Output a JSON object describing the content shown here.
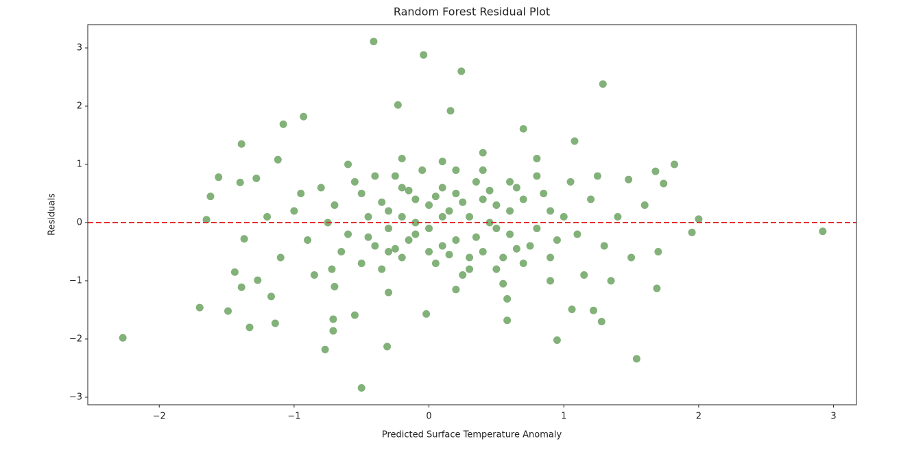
{
  "chart_data": {
    "type": "scatter",
    "title": "Random Forest Residual Plot",
    "xlabel": "Predicted Surface Temperature Anomaly",
    "ylabel": "Residuals",
    "xlim": [
      -2.53,
      3.17
    ],
    "ylim": [
      -3.13,
      3.4
    ],
    "xticks": [
      {
        "value": -2,
        "label": "−2"
      },
      {
        "value": -1,
        "label": "−1"
      },
      0,
      1,
      2,
      3
    ],
    "yticks": [
      {
        "value": -3,
        "label": "−3"
      },
      {
        "value": -2,
        "label": "−2"
      },
      {
        "value": -1,
        "label": "−1"
      },
      0,
      1,
      2,
      3
    ],
    "grid": false,
    "hline": {
      "y": 0,
      "color": "#e03030",
      "style": "dashed"
    },
    "series": [
      {
        "color": "#2e7d1f",
        "opacity": 0.6,
        "x": [
          -0.41,
          -0.04,
          0.24,
          1.29,
          -0.23,
          -0.93,
          -1.08,
          0.16,
          0.7,
          1.08,
          -1.39,
          -1.56,
          -1.62,
          1.82,
          2.0,
          2.92,
          -2.27,
          -1.7,
          -0.5,
          -0.31,
          -0.77,
          0.95,
          1.54,
          -1.33,
          -1.14,
          -1.49,
          1.69,
          1.28,
          -1.65,
          -1.28,
          -1.4,
          -1.12,
          -1.37,
          -1.44,
          -1.39,
          -1.27,
          -1.17,
          1.95,
          1.74,
          1.68,
          1.48,
          1.22,
          1.06,
          0.58,
          0.58,
          -0.55,
          -0.71,
          -0.71,
          -0.02,
          -0.7,
          -0.6,
          -0.5,
          -0.4,
          -0.3,
          -0.2,
          -0.1,
          0,
          0.1,
          0.2,
          0.3,
          0.4,
          0.5,
          0.6,
          0.7,
          0.8,
          0.9,
          -0.65,
          -0.55,
          -0.45,
          -0.35,
          -0.25,
          -0.15,
          -0.05,
          0.05,
          0.15,
          0.25,
          0.35,
          0.45,
          0.55,
          0.65,
          0.75,
          0.85,
          0.95,
          -0.75,
          -0.8,
          -0.72,
          -0.3,
          -0.2,
          -0.1,
          0.0,
          0.1,
          0.2,
          0.3,
          0.4,
          0.5,
          0.6,
          0.0,
          -0.1,
          0.1,
          -0.5,
          -0.4,
          -0.3,
          -0.2,
          0.2,
          0.3,
          0.4,
          0.5,
          0.6,
          0.7,
          0.8,
          0.9,
          1.0,
          1.1,
          1.2,
          1.3,
          1.4,
          1.5,
          1.6,
          1.7,
          -0.9,
          -1.0,
          -1.1,
          -1.2,
          -0.95,
          -0.85,
          1.05,
          1.15,
          1.25,
          1.35,
          -0.6,
          -0.2,
          0.1,
          0.4,
          0.8,
          -0.7,
          -0.3,
          0.2,
          0.55,
          0.9,
          -0.45,
          -0.35,
          -0.25,
          -0.15,
          0.05,
          0.15,
          0.25,
          0.35,
          0.45,
          0.65
        ],
        "values": [
          3.11,
          2.88,
          2.6,
          2.38,
          2.02,
          1.82,
          1.69,
          1.92,
          1.61,
          1.4,
          1.35,
          0.78,
          0.45,
          1.0,
          0.06,
          -0.15,
          -1.98,
          -1.46,
          -2.84,
          -2.13,
          -2.18,
          -2.02,
          -2.34,
          -1.8,
          -1.73,
          -1.52,
          -1.13,
          -1.7,
          0.05,
          0.76,
          0.69,
          1.08,
          -0.28,
          -0.85,
          -1.11,
          -0.99,
          -1.27,
          -0.17,
          0.67,
          0.88,
          0.74,
          -1.51,
          -1.49,
          -1.31,
          -1.68,
          -1.59,
          -1.66,
          -1.86,
          -1.57,
          0.3,
          -0.2,
          0.5,
          -0.4,
          0.2,
          -0.6,
          0.4,
          -0.1,
          0.6,
          -0.3,
          0.1,
          -0.5,
          0.3,
          -0.2,
          0.4,
          -0.1,
          0.2,
          -0.5,
          0.7,
          0.1,
          -0.8,
          0.8,
          -0.3,
          0.9,
          -0.7,
          0.2,
          -0.9,
          0.7,
          0.0,
          -0.6,
          0.6,
          -0.4,
          0.5,
          -0.3,
          0.0,
          0.6,
          -0.8,
          -0.1,
          0.1,
          -0.2,
          0.3,
          -0.4,
          0.5,
          -0.6,
          0.4,
          -0.1,
          0.2,
          -0.5,
          0.0,
          0.1,
          -0.7,
          0.8,
          -0.5,
          0.6,
          0.9,
          -0.8,
          0.9,
          -0.8,
          0.7,
          -0.7,
          0.8,
          -0.6,
          0.1,
          -0.2,
          0.4,
          -0.4,
          0.1,
          -0.6,
          0.3,
          -0.5,
          -0.3,
          0.2,
          -0.6,
          0.1,
          0.5,
          -0.9,
          0.7,
          -0.9,
          0.8,
          -1.0,
          1.0,
          1.1,
          1.05,
          1.2,
          1.1,
          -1.1,
          -1.2,
          -1.15,
          -1.05,
          -1.0,
          -0.25,
          0.35,
          -0.45,
          0.55,
          0.45,
          -0.55,
          0.35,
          -0.25,
          0.55,
          -0.45
        ]
      }
    ]
  }
}
